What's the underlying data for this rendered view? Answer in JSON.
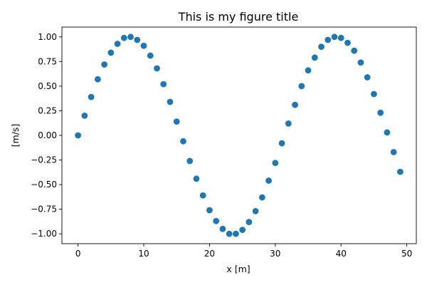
{
  "chart_data": {
    "type": "scatter",
    "title": "This is my figure title",
    "xlabel": "x [m]",
    "ylabel": "[m/s]",
    "xlim": [
      -2.45,
      51.45
    ],
    "ylim": [
      -1.1,
      1.1
    ],
    "xticks": [
      0,
      10,
      20,
      30,
      40,
      50
    ],
    "xtick_labels": [
      "0",
      "10",
      "20",
      "30",
      "40",
      "50"
    ],
    "yticks": [
      1.0,
      0.75,
      0.5,
      0.25,
      0.0,
      -0.25,
      -0.5,
      -0.75,
      -1.0
    ],
    "ytick_labels": [
      "1.00",
      "0.75",
      "0.50",
      "0.25",
      "0.00",
      "−0.25",
      "−0.50",
      "−0.75",
      "−1.00"
    ],
    "grid": false,
    "legend": "none",
    "series": [
      {
        "color": "#1f77b4",
        "x": [
          0,
          1,
          2,
          3,
          4,
          5,
          6,
          7,
          8,
          9,
          10,
          11,
          12,
          13,
          14,
          15,
          16,
          17,
          18,
          19,
          20,
          21,
          22,
          23,
          24,
          25,
          26,
          27,
          28,
          29,
          30,
          31,
          32,
          33,
          34,
          35,
          36,
          37,
          38,
          39,
          40,
          41,
          42,
          43,
          44,
          45,
          46,
          47,
          48,
          49
        ],
        "y": [
          0.0,
          0.2,
          0.39,
          0.57,
          0.72,
          0.84,
          0.93,
          0.99,
          1.0,
          0.97,
          0.91,
          0.81,
          0.68,
          0.52,
          0.34,
          0.14,
          -0.06,
          -0.26,
          -0.44,
          -0.61,
          -0.76,
          -0.87,
          -0.95,
          -1.0,
          -1.0,
          -0.96,
          -0.88,
          -0.77,
          -0.63,
          -0.46,
          -0.28,
          -0.08,
          0.12,
          0.31,
          0.5,
          0.66,
          0.79,
          0.9,
          0.97,
          1.0,
          0.99,
          0.94,
          0.86,
          0.74,
          0.59,
          0.42,
          0.23,
          0.03,
          -0.17,
          -0.37
        ]
      }
    ]
  }
}
